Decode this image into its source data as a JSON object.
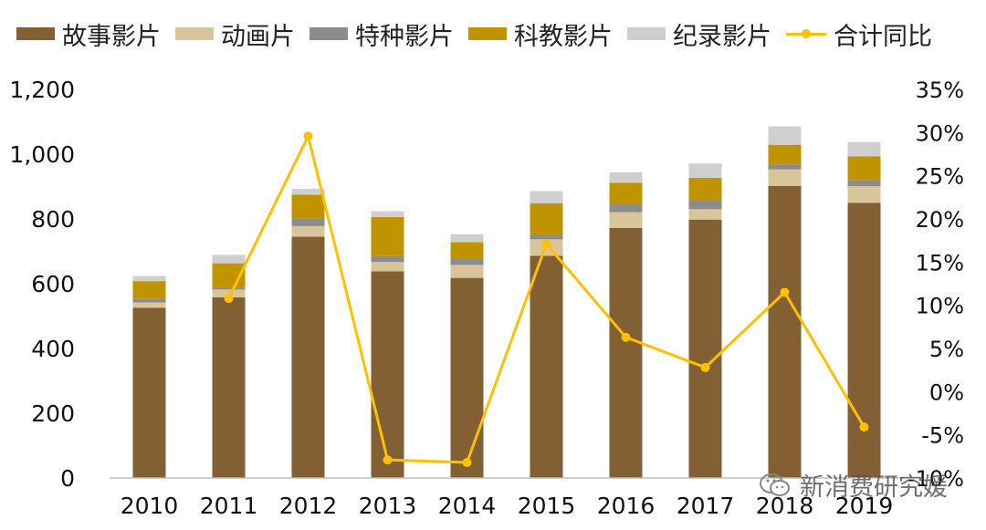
{
  "legend": {
    "items": [
      {
        "label": "故事影片",
        "color": "#835F34"
      },
      {
        "label": "动画片",
        "color": "#D8C59A"
      },
      {
        "label": "特种影片",
        "color": "#8C8C8C"
      },
      {
        "label": "科教影片",
        "color": "#C09400"
      },
      {
        "label": "纪录影片",
        "color": "#CFCFCF"
      }
    ],
    "line_label": "合计同比",
    "line_color": "#FFC000"
  },
  "watermark": {
    "text": "新消费研究媛",
    "icon": "wechat-icon"
  },
  "chart_data": {
    "type": "bar",
    "stacked": true,
    "categories": [
      "2010",
      "2011",
      "2012",
      "2013",
      "2014",
      "2015",
      "2016",
      "2017",
      "2018",
      "2019"
    ],
    "series": [
      {
        "name": "故事影片",
        "values": [
          526,
          558,
          745,
          638,
          618,
          686,
          772,
          798,
          902,
          850
        ]
      },
      {
        "name": "动画片",
        "values": [
          16,
          24,
          33,
          29,
          40,
          51,
          49,
          32,
          51,
          51
        ]
      },
      {
        "name": "特种影片",
        "values": [
          12,
          5,
          23,
          18,
          18,
          15,
          24,
          29,
          15,
          18
        ]
      },
      {
        "name": "科教影片",
        "values": [
          54,
          76,
          74,
          121,
          52,
          96,
          67,
          68,
          61,
          74
        ]
      },
      {
        "name": "纪录影片",
        "values": [
          16,
          26,
          18,
          18,
          25,
          38,
          32,
          44,
          57,
          44
        ]
      }
    ],
    "line_series": {
      "name": "合计同比",
      "axis": "right",
      "values": [
        null,
        10.8,
        29.6,
        -7.9,
        -8.2,
        17.1,
        6.3,
        2.8,
        11.5,
        -4.1
      ]
    },
    "y_left": {
      "min": 0,
      "max": 1200,
      "ticks": [
        0,
        200,
        400,
        600,
        800,
        1000,
        1200
      ],
      "tick_labels": [
        "0",
        "200",
        "400",
        "600",
        "800",
        "1,000",
        "1,200"
      ]
    },
    "y_right": {
      "min": -10,
      "max": 35,
      "ticks": [
        -10,
        -5,
        0,
        5,
        10,
        15,
        20,
        25,
        30,
        35
      ],
      "tick_labels": [
        "-10%",
        "-5%",
        "0%",
        "5%",
        "10%",
        "15%",
        "20%",
        "25%",
        "30%",
        "35%"
      ]
    },
    "grid": false,
    "legend_position": "top"
  }
}
